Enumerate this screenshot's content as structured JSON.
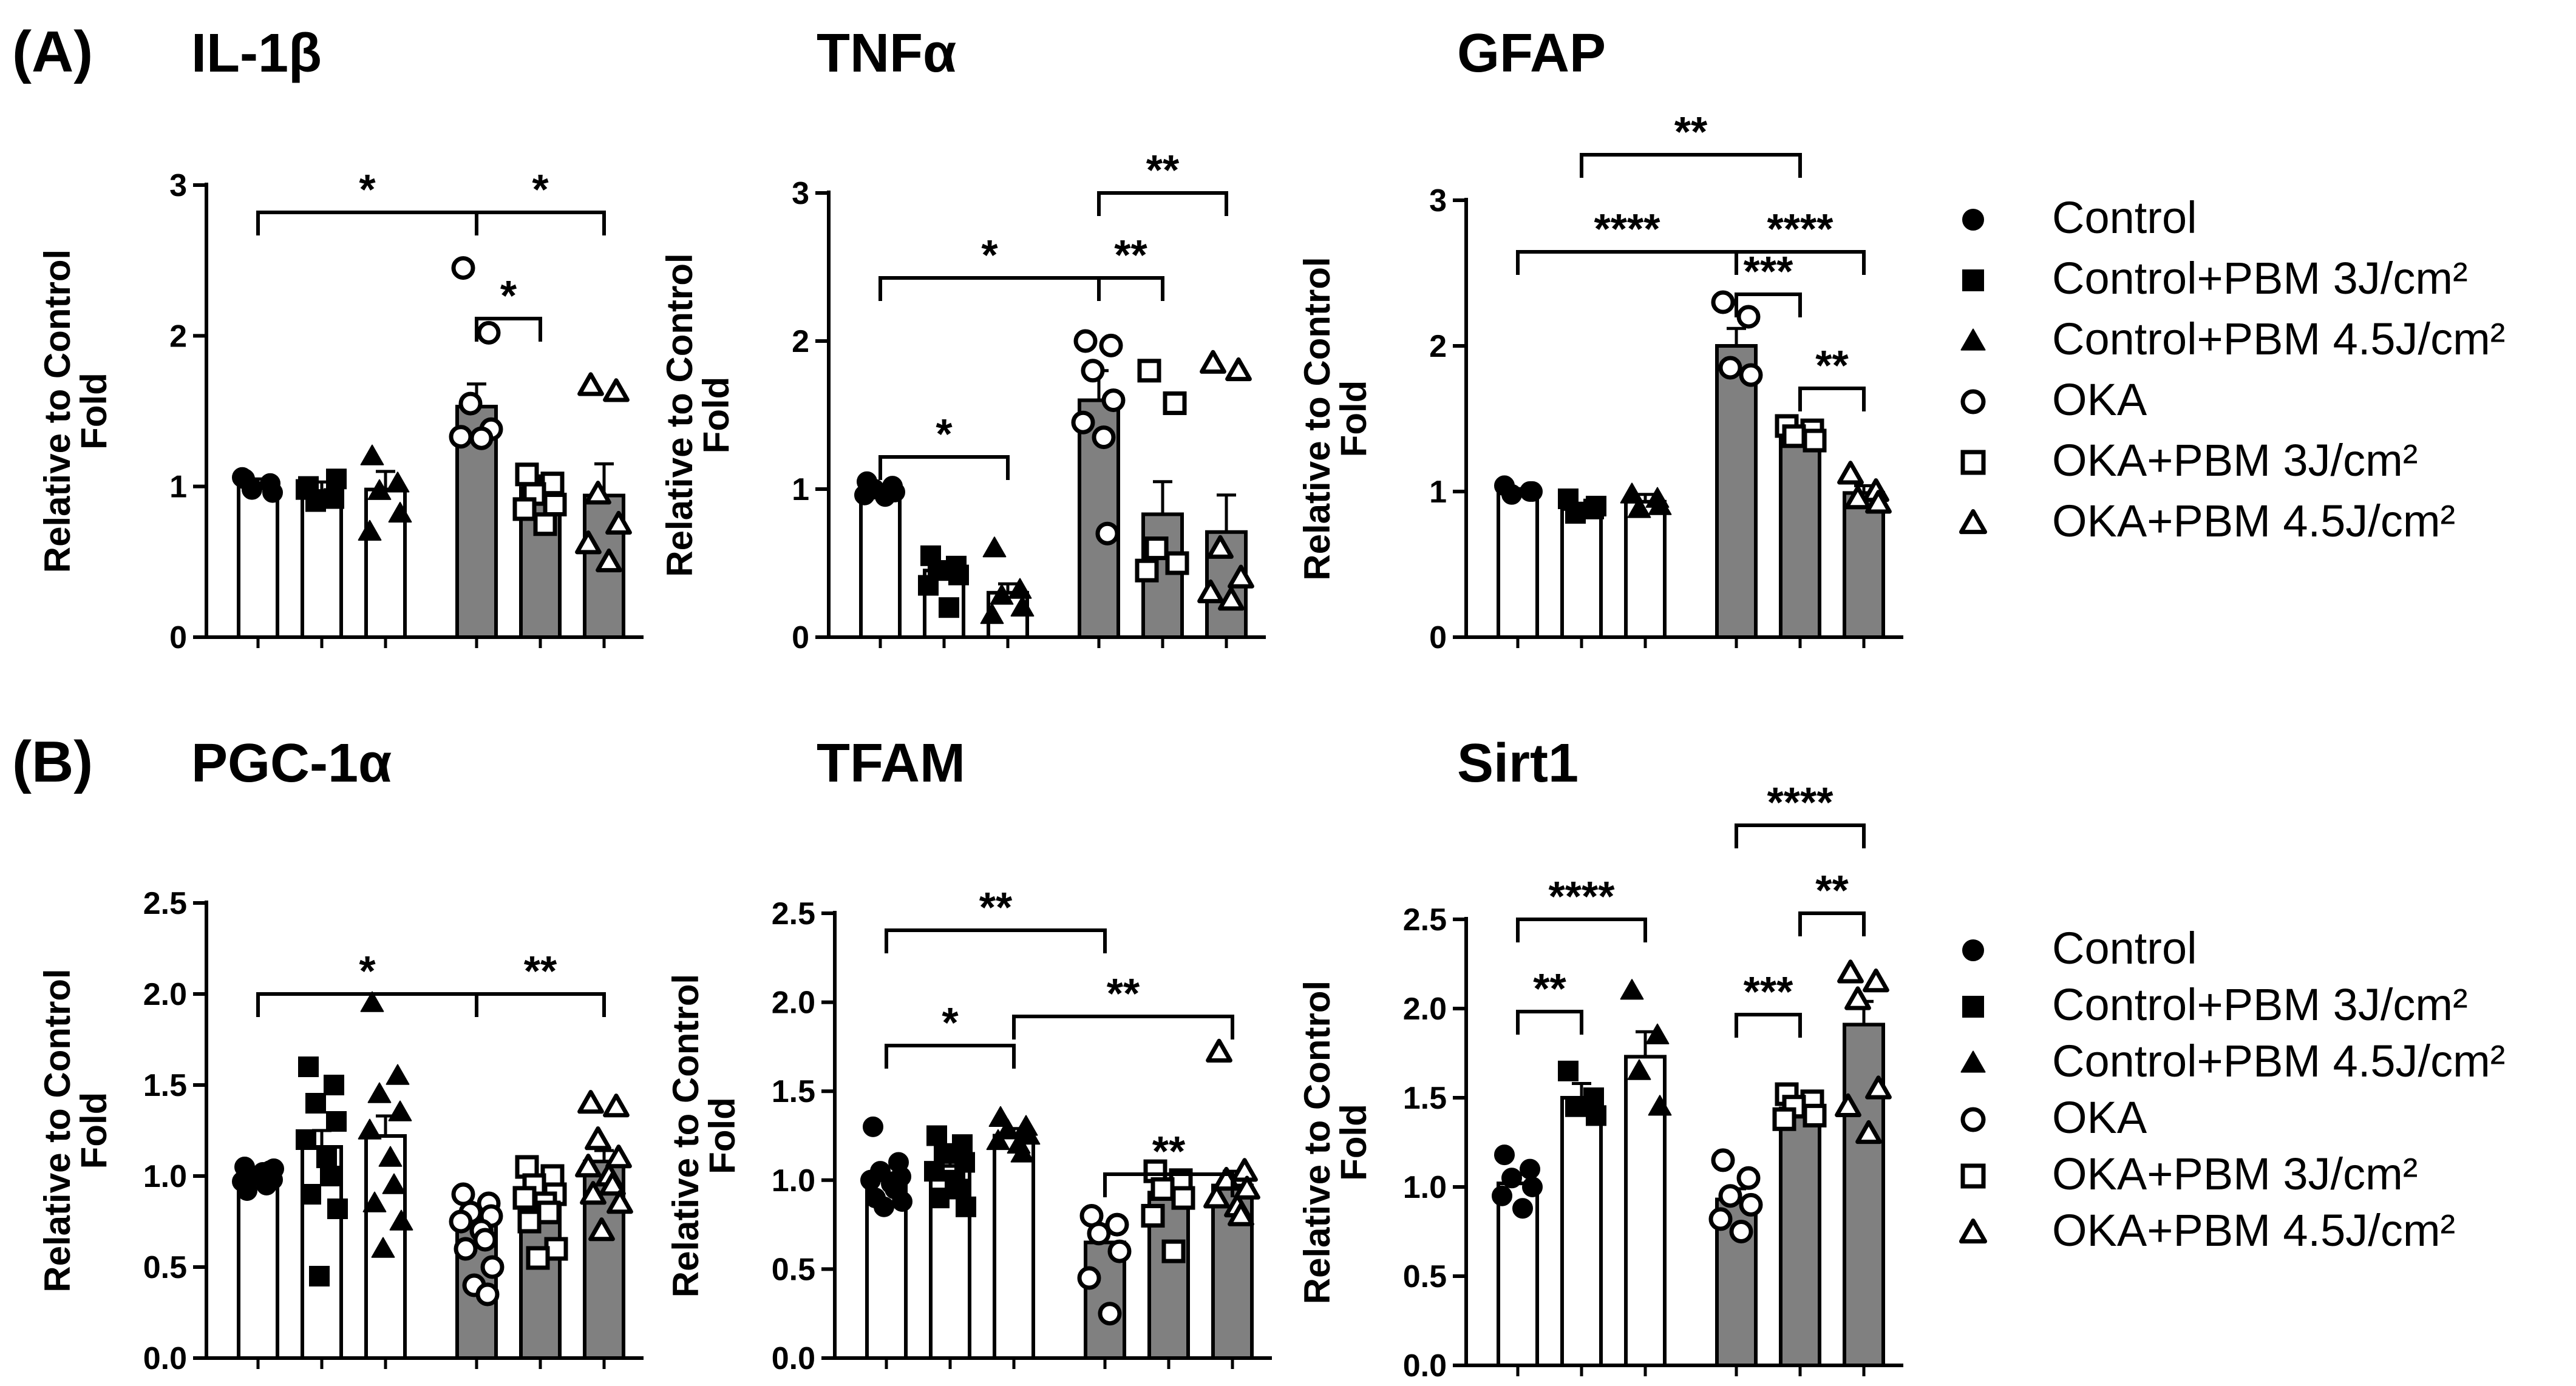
{
  "panels": [
    {
      "label": "(A)"
    },
    {
      "label": "(B)"
    }
  ],
  "legend": {
    "items": [
      {
        "label": "Control",
        "marker": "circle-filled"
      },
      {
        "label": "Control+PBM 3J/cm²",
        "marker": "square-filled"
      },
      {
        "label": "Control+PBM 4.5J/cm²",
        "marker": "triangle-filled"
      },
      {
        "label": "OKA",
        "marker": "circle-open"
      },
      {
        "label": "OKA+PBM 3J/cm²",
        "marker": "square-open"
      },
      {
        "label": "OKA+PBM 4.5J/cm²",
        "marker": "triangle-open"
      }
    ]
  },
  "colors": {
    "bar_control": "#ffffff",
    "bar_oka": "#808080",
    "ink": "#000000"
  },
  "chart_data": [
    {
      "type": "bar",
      "panel": "A",
      "title": "IL-1β",
      "ylabel": "Relative to Control",
      "ylabel2": "Fold",
      "ylim": [
        0,
        3
      ],
      "yticks": [
        "0",
        "1",
        "2",
        "3"
      ],
      "yticks_values": [
        0,
        1,
        2,
        3
      ],
      "groups": [
        "Control",
        "Control+PBM 3J/cm²",
        "Control+PBM 4.5J/cm²",
        "OKA",
        "OKA+PBM 3J/cm²",
        "OKA+PBM 4.5J/cm²"
      ],
      "values": [
        1.02,
        0.97,
        0.98,
        1.53,
        0.99,
        0.94
      ],
      "errors": [
        0.03,
        0.06,
        0.12,
        0.15,
        0.08,
        0.21
      ],
      "points": [
        [
          1.05,
          1.02,
          0.98,
          0.96,
          1.06
        ],
        [
          1.0,
          0.92,
          0.9,
          1.05,
          0.98
        ],
        [
          1.2,
          1.02,
          0.97,
          0.82,
          0.7
        ],
        [
          2.45,
          2.02,
          1.55,
          1.38,
          1.33,
          1.32
        ],
        [
          1.08,
          1.02,
          0.95,
          0.88,
          0.85,
          0.75
        ],
        [
          1.67,
          1.63,
          0.95,
          0.75,
          0.62,
          0.5
        ]
      ],
      "significance": [
        {
          "g1": 0,
          "g2": 3,
          "level": 0,
          "label": "*"
        },
        {
          "g1": 3,
          "g2": 5,
          "level": 0,
          "label": "*"
        },
        {
          "g1": 3,
          "g2": 4,
          "level": 1,
          "label": "*"
        }
      ]
    },
    {
      "type": "bar",
      "panel": "A",
      "title": "TNFα",
      "ylabel": "Relative to Control",
      "ylabel2": "Fold",
      "ylim": [
        0,
        3
      ],
      "yticks": [
        "0",
        "1",
        "2",
        "3"
      ],
      "yticks_values": [
        0,
        1,
        2,
        3
      ],
      "groups": [
        "Control",
        "Control+PBM 3J/cm²",
        "Control+PBM 4.5J/cm²",
        "OKA",
        "OKA+PBM 3J/cm²",
        "OKA+PBM 4.5J/cm²"
      ],
      "values": [
        0.98,
        0.45,
        0.3,
        1.6,
        0.83,
        0.71
      ],
      "errors": [
        0.03,
        0.06,
        0.06,
        0.2,
        0.22,
        0.25
      ],
      "points": [
        [
          1.05,
          1.02,
          1.0,
          0.98,
          0.96,
          0.95
        ],
        [
          0.55,
          0.48,
          0.45,
          0.42,
          0.35,
          0.2
        ],
        [
          0.6,
          0.32,
          0.28,
          0.2,
          0.15
        ],
        [
          2.0,
          1.97,
          1.8,
          1.6,
          1.45,
          1.35,
          0.7
        ],
        [
          1.8,
          1.58,
          0.6,
          0.5,
          0.45
        ],
        [
          1.85,
          1.8,
          0.6,
          0.4,
          0.3,
          0.25
        ]
      ],
      "significance": [
        {
          "g1": 0,
          "g2": 3,
          "level": 0,
          "label": "*"
        },
        {
          "g1": 0,
          "g2": 2,
          "level": 1,
          "label": "*"
        },
        {
          "g1": 3,
          "g2": 5,
          "level": 1,
          "label": "**"
        },
        {
          "g1": 3,
          "g2": 4,
          "level": 2,
          "label": "**"
        }
      ]
    },
    {
      "type": "bar",
      "panel": "A",
      "title": "GFAP",
      "ylabel": "Relative to Control",
      "ylabel2": "Fold",
      "ylim": [
        0,
        3
      ],
      "yticks": [
        "0",
        "1",
        "2",
        "3"
      ],
      "yticks_values": [
        0,
        1,
        2,
        3
      ],
      "groups": [
        "Control",
        "Control+PBM 3J/cm²",
        "Control+PBM 4.5J/cm²",
        "OKA",
        "OKA+PBM 3J/cm²",
        "OKA+PBM 4.5J/cm²"
      ],
      "values": [
        1.0,
        0.88,
        0.93,
        2.0,
        1.4,
        0.99
      ],
      "errors": [
        0.02,
        0.04,
        0.05,
        0.12,
        0.05,
        0.05
      ],
      "points": [
        [
          1.04,
          1.0,
          0.98,
          1.0
        ],
        [
          0.95,
          0.88,
          0.85,
          0.9
        ],
        [
          0.98,
          0.95,
          0.88,
          0.9
        ],
        [
          2.3,
          2.2,
          1.85,
          1.8
        ],
        [
          1.45,
          1.42,
          1.38,
          1.35
        ],
        [
          1.12,
          1.0,
          0.95,
          0.92
        ]
      ],
      "significance": [
        {
          "g1": 1,
          "g2": 4,
          "level": 0,
          "label": "**"
        },
        {
          "g1": 0,
          "g2": 3,
          "level": 1,
          "label": "****"
        },
        {
          "g1": 3,
          "g2": 5,
          "level": 1,
          "label": "****"
        },
        {
          "g1": 3,
          "g2": 4,
          "level": 2,
          "label": "***"
        },
        {
          "g1": 4,
          "g2": 5,
          "level": 3,
          "label": "**"
        }
      ]
    },
    {
      "type": "bar",
      "panel": "B",
      "title": "PGC-1α",
      "ylabel": "Relative to Control",
      "ylabel2": "Fold",
      "ylim": [
        0,
        2.5
      ],
      "yticks": [
        "0.0",
        "0.5",
        "1.0",
        "1.5",
        "2.0",
        "2.5"
      ],
      "yticks_values": [
        0,
        0.5,
        1,
        1.5,
        2,
        2.5
      ],
      "groups": [
        "Control",
        "Control+PBM 3J/cm²",
        "Control+PBM 4.5J/cm²",
        "OKA",
        "OKA+PBM 3J/cm²",
        "OKA+PBM 4.5J/cm²"
      ],
      "values": [
        1.0,
        1.16,
        1.22,
        0.76,
        0.92,
        1.08
      ],
      "errors": [
        0.02,
        0.09,
        0.11,
        0.04,
        0.07,
        0.06
      ],
      "points": [
        [
          1.05,
          1.03,
          1.0,
          0.98,
          0.97,
          1.02,
          0.95,
          0.92,
          1.04,
          1.0
        ],
        [
          1.6,
          1.5,
          1.4,
          1.3,
          1.2,
          1.1,
          1.0,
          0.9,
          0.82,
          0.45
        ],
        [
          1.95,
          1.55,
          1.45,
          1.35,
          1.25,
          1.1,
          0.95,
          0.85,
          0.75,
          0.6
        ],
        [
          0.9,
          0.85,
          0.8,
          0.78,
          0.75,
          0.7,
          0.65,
          0.6,
          0.5,
          0.4,
          0.35
        ],
        [
          1.05,
          1.0,
          0.95,
          0.9,
          0.88,
          0.85,
          0.8,
          0.75,
          0.6,
          0.55
        ],
        [
          1.4,
          1.38,
          1.2,
          1.1,
          1.05,
          1.0,
          0.95,
          0.9,
          0.85,
          0.7
        ]
      ],
      "significance": [
        {
          "g1": 0,
          "g2": 3,
          "level": 0,
          "label": "*"
        },
        {
          "g1": 3,
          "g2": 5,
          "level": 0,
          "label": "**"
        }
      ]
    },
    {
      "type": "bar",
      "panel": "B",
      "title": "TFAM",
      "ylabel": "Relative to Control",
      "ylabel2": "Fold",
      "ylim": [
        0,
        2.5
      ],
      "yticks": [
        "0.0",
        "0.5",
        "1.0",
        "1.5",
        "2.0",
        "2.5"
      ],
      "yticks_values": [
        0,
        0.5,
        1,
        1.5,
        2,
        2.5
      ],
      "groups": [
        "Control",
        "Control+PBM 3J/cm²",
        "Control+PBM 4.5J/cm²",
        "OKA",
        "OKA+PBM 3J/cm²",
        "OKA+PBM 4.5J/cm²"
      ],
      "values": [
        1.0,
        1.08,
        1.25,
        0.65,
        0.93,
        0.97
      ],
      "errors": [
        0.04,
        0.05,
        0.04,
        0.1,
        0.06,
        0.08
      ],
      "points": [
        [
          1.3,
          1.1,
          1.05,
          1.02,
          1.0,
          0.98,
          0.95,
          0.9,
          0.88,
          0.85
        ],
        [
          1.25,
          1.2,
          1.15,
          1.1,
          1.05,
          1.0,
          0.95,
          0.9,
          0.85
        ],
        [
          1.35,
          1.3,
          1.28,
          1.25,
          1.22,
          1.2,
          1.15
        ],
        [
          0.8,
          0.75,
          0.7,
          0.6,
          0.45,
          0.25
        ],
        [
          1.05,
          1.0,
          0.95,
          0.9,
          0.8,
          0.6
        ],
        [
          1.72,
          1.05,
          1.0,
          0.95,
          0.9,
          0.85,
          0.8
        ]
      ],
      "significance": [
        {
          "g1": 0,
          "g2": 3,
          "level": 0,
          "label": "**"
        },
        {
          "g1": 2,
          "g2": 5,
          "level": 1,
          "label": "**"
        },
        {
          "g1": 0,
          "g2": 2,
          "level": 2,
          "label": "*"
        },
        {
          "g1": 3,
          "g2": 5,
          "level": 3,
          "label": "**"
        }
      ]
    },
    {
      "type": "bar",
      "panel": "B",
      "title": "Sirt1",
      "ylabel": "Relative to Control",
      "ylabel2": "Fold",
      "ylim": [
        0,
        2.5
      ],
      "yticks": [
        "0.0",
        "0.5",
        "1.0",
        "1.5",
        "2.0",
        "2.5"
      ],
      "yticks_values": [
        0,
        0.5,
        1,
        1.5,
        2,
        2.5
      ],
      "groups": [
        "Control",
        "Control+PBM 3J/cm²",
        "Control+PBM 4.5J/cm²",
        "OKA",
        "OKA+PBM 3J/cm²",
        "OKA+PBM 4.5J/cm²"
      ],
      "values": [
        1.02,
        1.5,
        1.73,
        0.93,
        1.44,
        1.91
      ],
      "errors": [
        0.05,
        0.08,
        0.14,
        0.06,
        0.04,
        0.13
      ],
      "points": [
        [
          1.18,
          1.1,
          1.05,
          1.0,
          0.95,
          0.88
        ],
        [
          1.65,
          1.5,
          1.45,
          1.4
        ],
        [
          2.1,
          1.85,
          1.65,
          1.45
        ],
        [
          1.15,
          1.05,
          0.95,
          0.9,
          0.82,
          0.75
        ],
        [
          1.52,
          1.48,
          1.45,
          1.4,
          1.38
        ],
        [
          2.2,
          2.15,
          2.05,
          1.55,
          1.45,
          1.3
        ]
      ],
      "significance": [
        {
          "g1": 0,
          "g2": 2,
          "level": 0,
          "label": "****"
        },
        {
          "g1": 0,
          "g2": 1,
          "level": 1,
          "label": "**"
        },
        {
          "g1": 3,
          "g2": 5,
          "level": 2,
          "label": "****"
        },
        {
          "g1": 4,
          "g2": 5,
          "level": 3,
          "label": "**"
        },
        {
          "g1": 3,
          "g2": 4,
          "level": 4,
          "label": "***"
        }
      ]
    }
  ]
}
